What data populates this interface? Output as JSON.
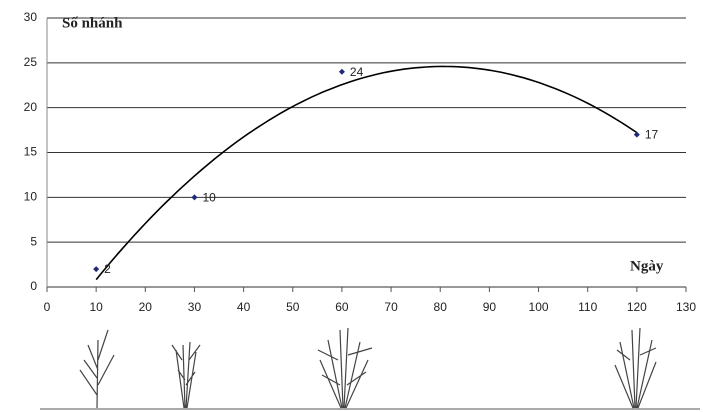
{
  "chart_data": {
    "type": "scatter",
    "y_label": "Số nhánh",
    "x_label": "Ngày",
    "x": [
      10,
      30,
      60,
      120
    ],
    "values": [
      2,
      10,
      24,
      17
    ],
    "color": "#1f2a7a",
    "trendline_order": 2,
    "trendline_color": "#000000",
    "xlim": [
      0,
      130
    ],
    "xticks": [
      0,
      10,
      20,
      30,
      40,
      50,
      60,
      70,
      80,
      90,
      100,
      110,
      120,
      130
    ],
    "ylim": [
      0,
      30
    ],
    "yticks": [
      0,
      5,
      10,
      15,
      20,
      25,
      30
    ],
    "grid": true,
    "data_labels": true
  }
}
